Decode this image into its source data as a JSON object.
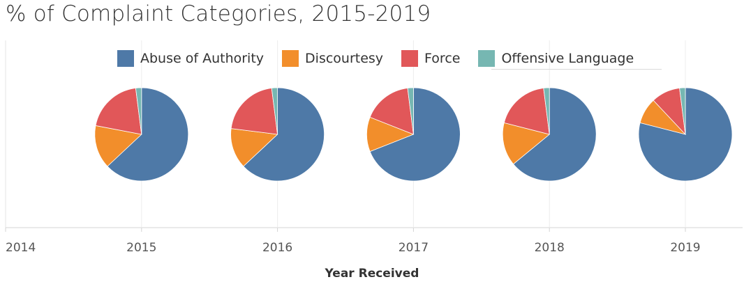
{
  "title": "% of Complaint Categories, 2015-2019",
  "legend": [
    {
      "label": "Abuse of Authority",
      "color": "#4e79a7"
    },
    {
      "label": "Discourtesy",
      "color": "#f28e2b"
    },
    {
      "label": "Force",
      "color": "#e15759"
    },
    {
      "label": "Offensive Language",
      "color": "#76b7b2"
    }
  ],
  "chart_data": {
    "type": "pie",
    "title": "% of Complaint Categories, 2015-2019",
    "xlabel": "Year Received",
    "x_ticks": [
      "2014",
      "2015",
      "2016",
      "2017",
      "2018",
      "2019"
    ],
    "x_range": [
      2014,
      2019.4
    ],
    "grid": "vertical",
    "legend_position": "top",
    "series": [
      "Abuse of Authority",
      "Discourtesy",
      "Force",
      "Offensive Language"
    ],
    "pies": [
      {
        "year": 2015,
        "values": [
          63,
          15,
          20,
          2
        ]
      },
      {
        "year": 2016,
        "values": [
          63,
          14,
          21,
          2
        ]
      },
      {
        "year": 2017,
        "values": [
          69,
          12,
          17,
          2
        ]
      },
      {
        "year": 2018,
        "values": [
          64,
          15,
          19,
          2
        ]
      },
      {
        "year": 2019,
        "values": [
          79,
          9,
          10,
          2
        ]
      }
    ]
  }
}
